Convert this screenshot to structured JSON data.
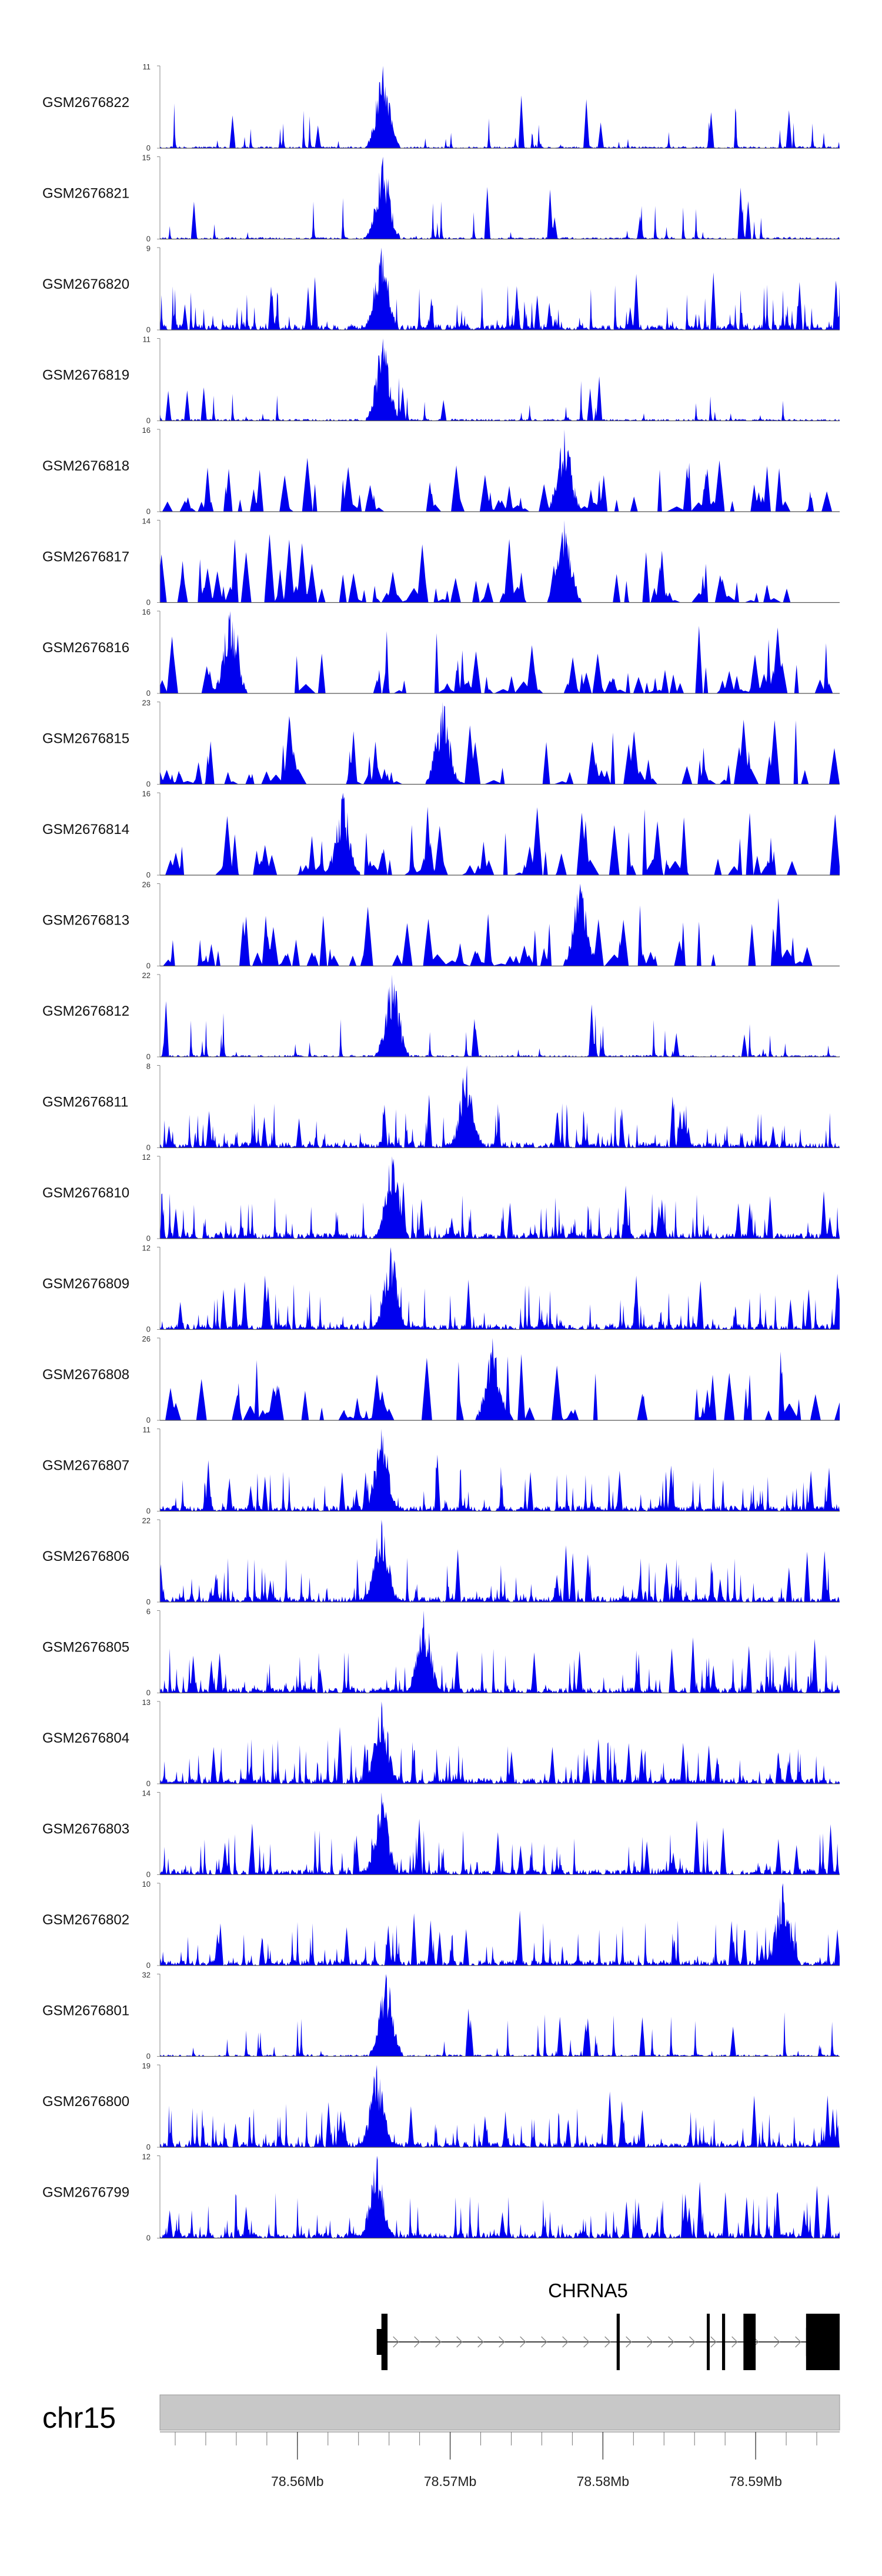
{
  "chart_data": {
    "type": "area",
    "title": "",
    "xlabel": "",
    "ylabel": "",
    "chromosome": "chr15",
    "xlim": [
      78.551,
      78.5955
    ],
    "track_color": "#0000ee",
    "tracks": [
      {
        "name": "GSM2676822",
        "ymax": 11,
        "peak_position": 78.5656,
        "peak_value": 11,
        "profile": "clustered",
        "seed": 101
      },
      {
        "name": "GSM2676821",
        "ymax": 15,
        "peak_position": 78.5656,
        "peak_value": 15,
        "profile": "clustered",
        "seed": 102
      },
      {
        "name": "GSM2676820",
        "ymax": 9,
        "peak_position": 78.5655,
        "peak_value": 9,
        "profile": "dense",
        "seed": 103
      },
      {
        "name": "GSM2676819",
        "ymax": 11,
        "peak_position": 78.5656,
        "peak_value": 11,
        "profile": "clustered",
        "seed": 104
      },
      {
        "name": "GSM2676818",
        "ymax": 16,
        "peak_position": 78.5775,
        "peak_value": 16,
        "profile": "sparse",
        "seed": 105
      },
      {
        "name": "GSM2676817",
        "ymax": 14,
        "peak_position": 78.5775,
        "peak_value": 14,
        "profile": "sparse",
        "seed": 106
      },
      {
        "name": "GSM2676816",
        "ymax": 16,
        "peak_position": 78.5556,
        "peak_value": 16,
        "profile": "sparse",
        "seed": 107
      },
      {
        "name": "GSM2676815",
        "ymax": 23,
        "peak_position": 78.5695,
        "peak_value": 23,
        "profile": "sparse",
        "seed": 108
      },
      {
        "name": "GSM2676814",
        "ymax": 16,
        "peak_position": 78.563,
        "peak_value": 16,
        "profile": "sparse",
        "seed": 109
      },
      {
        "name": "GSM2676813",
        "ymax": 26,
        "peak_position": 78.5785,
        "peak_value": 26,
        "profile": "sparse",
        "seed": 110
      },
      {
        "name": "GSM2676812",
        "ymax": 22,
        "peak_position": 78.5662,
        "peak_value": 22,
        "profile": "clustered",
        "seed": 111
      },
      {
        "name": "GSM2676811",
        "ymax": 8,
        "peak_position": 78.5711,
        "peak_value": 8,
        "profile": "dense",
        "seed": 112
      },
      {
        "name": "GSM2676810",
        "ymax": 12,
        "peak_position": 78.5662,
        "peak_value": 12,
        "profile": "dense",
        "seed": 113
      },
      {
        "name": "GSM2676809",
        "ymax": 12,
        "peak_position": 78.5661,
        "peak_value": 12,
        "profile": "dense",
        "seed": 114
      },
      {
        "name": "GSM2676808",
        "ymax": 26,
        "peak_position": 78.5728,
        "peak_value": 26,
        "profile": "sparse",
        "seed": 115
      },
      {
        "name": "GSM2676807",
        "ymax": 11,
        "peak_position": 78.5655,
        "peak_value": 11,
        "profile": "dense",
        "seed": 116
      },
      {
        "name": "GSM2676806",
        "ymax": 22,
        "peak_position": 78.5655,
        "peak_value": 22,
        "profile": "dense",
        "seed": 117
      },
      {
        "name": "GSM2676805",
        "ymax": 6,
        "peak_position": 78.5683,
        "peak_value": 6,
        "profile": "dense",
        "seed": 118
      },
      {
        "name": "GSM2676804",
        "ymax": 13,
        "peak_position": 78.5655,
        "peak_value": 13,
        "profile": "dense",
        "seed": 119
      },
      {
        "name": "GSM2676803",
        "ymax": 14,
        "peak_position": 78.5655,
        "peak_value": 14,
        "profile": "dense",
        "seed": 120
      },
      {
        "name": "GSM2676802",
        "ymax": 10,
        "peak_position": 78.5918,
        "peak_value": 10,
        "profile": "dense",
        "seed": 121
      },
      {
        "name": "GSM2676801",
        "ymax": 32,
        "peak_position": 78.5658,
        "peak_value": 32,
        "profile": "clustered",
        "seed": 122
      },
      {
        "name": "GSM2676800",
        "ymax": 19,
        "peak_position": 78.5652,
        "peak_value": 19,
        "profile": "dense",
        "seed": 123
      },
      {
        "name": "GSM2676799",
        "ymax": 12,
        "peak_position": 78.5652,
        "peak_value": 12,
        "profile": "dense",
        "seed": 124
      }
    ],
    "gene": {
      "name": "CHRNA5",
      "strand": "+",
      "start": 78.5655,
      "end": 78.5955,
      "exons": [
        [
          78.5655,
          78.5659
        ],
        [
          78.5809,
          78.5811
        ],
        [
          78.5868,
          78.5869
        ],
        [
          78.5878,
          78.588
        ],
        [
          78.5892,
          78.59
        ],
        [
          78.5933,
          78.5955
        ]
      ],
      "utr": [
        [
          78.5655,
          78.5657
        ]
      ]
    },
    "axis": {
      "ticks": [
        78.56,
        78.57,
        78.58,
        78.59
      ],
      "tick_labels": [
        "78.56Mb",
        "78.57Mb",
        "78.58Mb",
        "78.59Mb"
      ],
      "minor_step": 0.002,
      "zero_label": "0"
    }
  }
}
